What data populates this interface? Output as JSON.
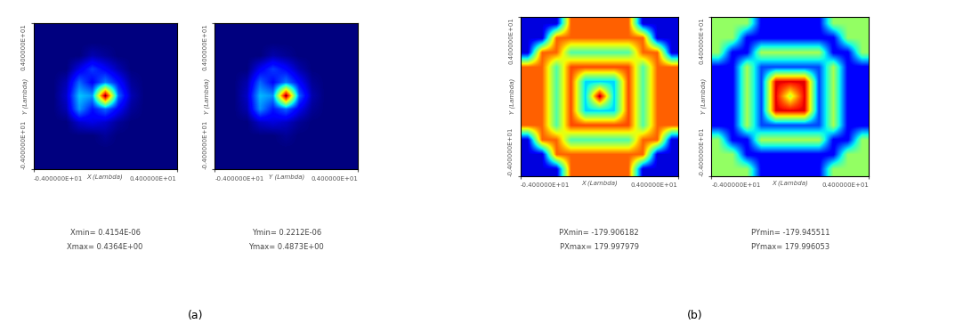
{
  "chart_data": [
    {
      "type": "heatmap",
      "x_label": "X (Lambda)",
      "y_label": "Y (Lambda)",
      "xlim": [
        -4,
        4
      ],
      "ylim": [
        -4,
        4
      ],
      "xticks": [
        {
          "value": -4,
          "label": "-0.400000E+01"
        },
        {
          "value": 4,
          "label": "0.400000E+01"
        }
      ],
      "yticks": [
        {
          "value": -4,
          "label": "-0.400000E+01"
        },
        {
          "value": 4,
          "label": "0.400000E+01"
        }
      ],
      "zlim": [
        4.154e-07,
        0.4364
      ],
      "caption": [
        "Xmin= 0.4154E-06",
        "Xmax= 0.4364E+00"
      ],
      "cells": [
        [
          0,
          0,
          0,
          0,
          0,
          0,
          0,
          0,
          0,
          0,
          0
        ],
        [
          0,
          0,
          0,
          0,
          0,
          0,
          0,
          0,
          0,
          0,
          0
        ],
        [
          0,
          0,
          0,
          0,
          0,
          0.01,
          0,
          0,
          0,
          0,
          0
        ],
        [
          0,
          0,
          0,
          0.03,
          0.04,
          0.03,
          0.01,
          0,
          0,
          0,
          0
        ],
        [
          0,
          0,
          0.02,
          0.12,
          0.06,
          0.1,
          0.05,
          0.01,
          0,
          0,
          0
        ],
        [
          0,
          0,
          0.03,
          0.14,
          0.12,
          0.4364,
          0.1,
          0.02,
          0,
          0,
          0
        ],
        [
          0,
          0,
          0.02,
          0.1,
          0.05,
          0.11,
          0.06,
          0.01,
          0,
          0,
          0
        ],
        [
          0,
          0,
          0,
          0.04,
          0.08,
          0.05,
          0.02,
          0,
          0,
          0,
          0
        ],
        [
          0,
          0,
          0,
          0,
          0.02,
          0.01,
          0,
          0,
          0,
          0,
          0
        ],
        [
          0,
          0,
          0,
          0,
          0,
          0,
          0,
          0,
          0,
          0,
          0
        ],
        [
          0,
          0,
          0,
          0,
          0,
          0,
          0,
          0,
          0,
          0,
          0
        ]
      ]
    },
    {
      "type": "heatmap",
      "x_label": "Y (Lambda)",
      "y_label": "Y (Lambda)",
      "xlim": [
        -4,
        4
      ],
      "ylim": [
        -4,
        4
      ],
      "xticks": [
        {
          "value": -4,
          "label": "-0.400000E+01"
        },
        {
          "value": 4,
          "label": "0.400000E+01"
        }
      ],
      "yticks": [
        {
          "value": -4,
          "label": "-0.400000E+01"
        },
        {
          "value": 4,
          "label": "0.400000E+01"
        }
      ],
      "zlim": [
        2.212e-07,
        0.4873
      ],
      "caption": [
        "Ymin= 0.2212E-06",
        "Ymax= 0.4873E+00"
      ],
      "cells": [
        [
          0,
          0,
          0,
          0,
          0,
          0,
          0,
          0,
          0,
          0,
          0
        ],
        [
          0,
          0,
          0,
          0,
          0,
          0,
          0,
          0,
          0,
          0,
          0
        ],
        [
          0,
          0,
          0,
          0,
          0,
          0.01,
          0,
          0,
          0,
          0,
          0
        ],
        [
          0,
          0,
          0,
          0.03,
          0.04,
          0.03,
          0.01,
          0,
          0,
          0,
          0
        ],
        [
          0,
          0,
          0.02,
          0.13,
          0.07,
          0.11,
          0.05,
          0.01,
          0,
          0,
          0
        ],
        [
          0,
          0,
          0.03,
          0.15,
          0.13,
          0.4873,
          0.11,
          0.02,
          0,
          0,
          0
        ],
        [
          0,
          0,
          0.02,
          0.11,
          0.06,
          0.12,
          0.06,
          0.01,
          0,
          0,
          0
        ],
        [
          0,
          0,
          0,
          0.05,
          0.09,
          0.06,
          0.02,
          0,
          0,
          0,
          0
        ],
        [
          0,
          0,
          0,
          0,
          0.02,
          0.01,
          0,
          0,
          0,
          0,
          0
        ],
        [
          0,
          0,
          0,
          0,
          0,
          0,
          0,
          0,
          0,
          0,
          0
        ],
        [
          0,
          0,
          0,
          0,
          0,
          0,
          0,
          0,
          0,
          0,
          0
        ]
      ]
    },
    {
      "type": "heatmap",
      "x_label": "X (Lambda)",
      "y_label": "Y (Lambda)",
      "xlim": [
        -4,
        4
      ],
      "ylim": [
        -4,
        4
      ],
      "xticks": [
        {
          "value": -4,
          "label": "-0.400000E+01"
        },
        {
          "value": 4,
          "label": "0.400000E+01"
        }
      ],
      "yticks": [
        {
          "value": -4,
          "label": "-0.400000E+01"
        },
        {
          "value": 4,
          "label": "0.400000E+01"
        }
      ],
      "zlim": [
        -179.906182,
        179.997979
      ],
      "caption": [
        "PXmin= -179.906182",
        "PXmax= 179.997979"
      ],
      "cells": [
        [
          -150,
          -150,
          -150,
          110,
          110,
          110,
          110,
          110,
          -150,
          -150,
          -150
        ],
        [
          -150,
          -150,
          110,
          110,
          110,
          110,
          110,
          110,
          110,
          -150,
          -150
        ],
        [
          -150,
          110,
          110,
          -20,
          -20,
          -20,
          -20,
          -20,
          110,
          110,
          -150
        ],
        [
          110,
          110,
          -20,
          120,
          120,
          120,
          120,
          120,
          -20,
          110,
          110
        ],
        [
          110,
          110,
          -20,
          120,
          -60,
          -60,
          -60,
          120,
          -20,
          110,
          110
        ],
        [
          110,
          110,
          -20,
          120,
          -60,
          170,
          -60,
          120,
          -20,
          110,
          110
        ],
        [
          110,
          110,
          -20,
          120,
          -60,
          -60,
          -60,
          120,
          -20,
          110,
          110
        ],
        [
          110,
          110,
          -20,
          120,
          120,
          120,
          120,
          120,
          -20,
          110,
          110
        ],
        [
          -150,
          110,
          110,
          -20,
          -20,
          -20,
          -20,
          -20,
          110,
          110,
          -150
        ],
        [
          -150,
          -150,
          110,
          110,
          110,
          110,
          110,
          110,
          110,
          -150,
          -150
        ],
        [
          -150,
          -150,
          -150,
          110,
          110,
          110,
          110,
          110,
          -150,
          -150,
          -150
        ]
      ]
    },
    {
      "type": "heatmap",
      "x_label": "X (Lambda)",
      "y_label": "Y (Lambda)",
      "xlim": [
        -4,
        4
      ],
      "ylim": [
        -4,
        4
      ],
      "xticks": [
        {
          "value": -4,
          "label": "-0.400000E+01"
        },
        {
          "value": 4,
          "label": "0.400000E+01"
        }
      ],
      "yticks": [
        {
          "value": -4,
          "label": "-0.400000E+01"
        },
        {
          "value": 4,
          "label": "0.400000E+01"
        }
      ],
      "zlim": [
        -179.945511,
        179.996053
      ],
      "caption": [
        "PYmin= -179.945511",
        "PYmax= 179.996053"
      ],
      "cells": [
        [
          10,
          10,
          10,
          -140,
          -140,
          -140,
          -140,
          -140,
          10,
          10,
          10
        ],
        [
          10,
          10,
          -140,
          -140,
          -140,
          -140,
          -140,
          -140,
          -140,
          10,
          10
        ],
        [
          10,
          -140,
          -140,
          20,
          20,
          20,
          20,
          20,
          -140,
          -140,
          10
        ],
        [
          -140,
          -140,
          20,
          -110,
          -110,
          -110,
          -110,
          -110,
          20,
          -140,
          -140
        ],
        [
          -140,
          -140,
          20,
          -110,
          150,
          150,
          150,
          -110,
          20,
          -140,
          -140
        ],
        [
          -140,
          -140,
          20,
          -110,
          150,
          30,
          150,
          -110,
          20,
          -140,
          -140
        ],
        [
          -140,
          -140,
          20,
          -110,
          150,
          150,
          150,
          -110,
          20,
          -140,
          -140
        ],
        [
          -140,
          -140,
          20,
          -110,
          -110,
          -110,
          -110,
          -110,
          20,
          -140,
          -140
        ],
        [
          10,
          -140,
          -140,
          20,
          20,
          20,
          20,
          20,
          -140,
          -140,
          10
        ],
        [
          10,
          10,
          -140,
          -140,
          -140,
          -140,
          -140,
          -140,
          -140,
          10,
          10
        ],
        [
          10,
          10,
          10,
          -140,
          -140,
          -140,
          -140,
          -140,
          10,
          10,
          10
        ]
      ]
    }
  ],
  "panel_labels": [
    "(a)",
    "(b)"
  ]
}
